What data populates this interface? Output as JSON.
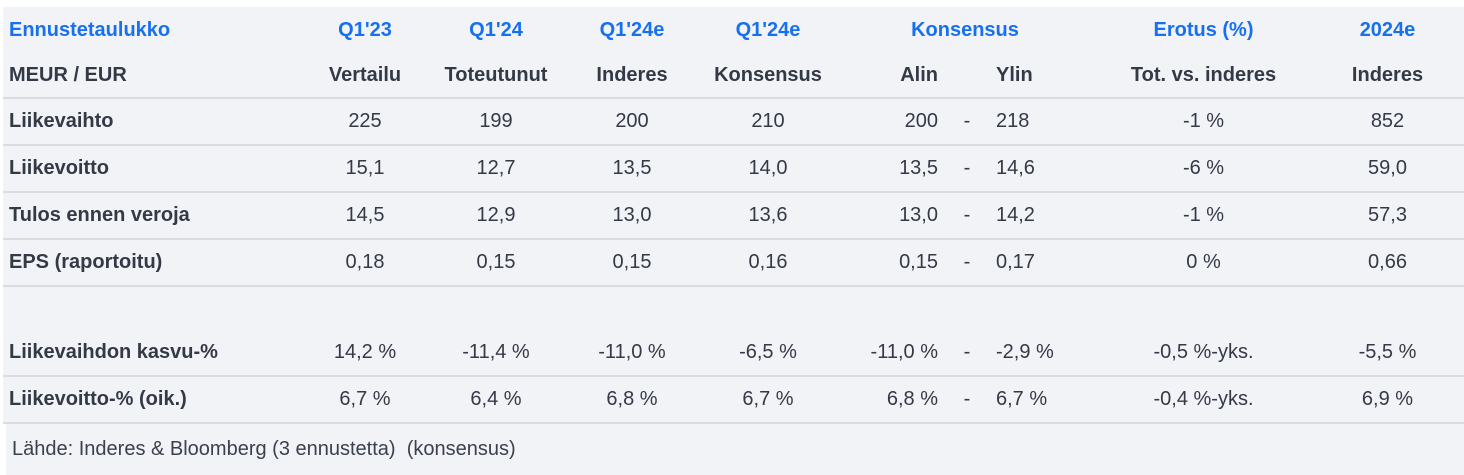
{
  "colors": {
    "accent_blue": "#1670f0",
    "text_dark": "#333a46",
    "row_background": "#f2f3f7",
    "separator": "#dadce2",
    "page_background": "#ffffff"
  },
  "chart_data": {
    "type": "table",
    "title": "Ennustetaulukko",
    "unit_label": "MEUR / EUR",
    "header_row1": {
      "title": "Ennustetaulukko",
      "q123": "Q1'23",
      "q124": "Q1'24",
      "q124e_inderes": "Q1'24e",
      "q124e_konsensus": "Q1'24e",
      "konsensus_group": "Konsensus",
      "erotus": "Erotus (%)",
      "y2024e": "2024e"
    },
    "header_row2": {
      "unit": "MEUR / EUR",
      "vertailu": "Vertailu",
      "toteutunut": "Toteutunut",
      "inderes": "Inderes",
      "konsensus": "Konsensus",
      "alin": "Alin",
      "ylin": "Ylin",
      "tot_vs_inderes": "Tot. vs. inderes",
      "inderes_2024": "Inderes"
    },
    "rows": [
      {
        "label": "Liikevaihto",
        "vertailu": "225",
        "toteutunut": "199",
        "inderes": "200",
        "konsensus": "210",
        "alin": "200",
        "dash": "-",
        "ylin": "218",
        "erotus": "-1 %",
        "y2024": "852"
      },
      {
        "label": "Liikevoitto",
        "vertailu": "15,1",
        "toteutunut": "12,7",
        "inderes": "13,5",
        "konsensus": "14,0",
        "alin": "13,5",
        "dash": "-",
        "ylin": "14,6",
        "erotus": "-6 %",
        "y2024": "59,0"
      },
      {
        "label": "Tulos ennen veroja",
        "vertailu": "14,5",
        "toteutunut": "12,9",
        "inderes": "13,0",
        "konsensus": "13,6",
        "alin": "13,0",
        "dash": "-",
        "ylin": "14,2",
        "erotus": "-1 %",
        "y2024": "57,3"
      },
      {
        "label": "EPS (raportoitu)",
        "vertailu": "0,18",
        "toteutunut": "0,15",
        "inderes": "0,15",
        "konsensus": "0,16",
        "alin": "0,15",
        "dash": "-",
        "ylin": "0,17",
        "erotus": "0 %",
        "y2024": "0,66"
      },
      {
        "label": "Liikevaihdon kasvu-%",
        "vertailu": "14,2 %",
        "toteutunut": "-11,4 %",
        "inderes": "-11,0 %",
        "konsensus": "-6,5 %",
        "alin": "-11,0 %",
        "dash": "-",
        "ylin": "-2,9 %",
        "erotus": "-0,5 %-yks.",
        "y2024": "-5,5 %"
      },
      {
        "label": "Liikevoitto-% (oik.)",
        "vertailu": "6,7 %",
        "toteutunut": "6,4 %",
        "inderes": "6,8 %",
        "konsensus": "6,7 %",
        "alin": "6,8 %",
        "dash": "-",
        "ylin": "6,7 %",
        "erotus": "-0,4 %-yks.",
        "y2024": "6,9 %"
      }
    ],
    "footer": "Lähde: Inderes & Bloomberg (3 ennustetta)  (konsensus)"
  }
}
